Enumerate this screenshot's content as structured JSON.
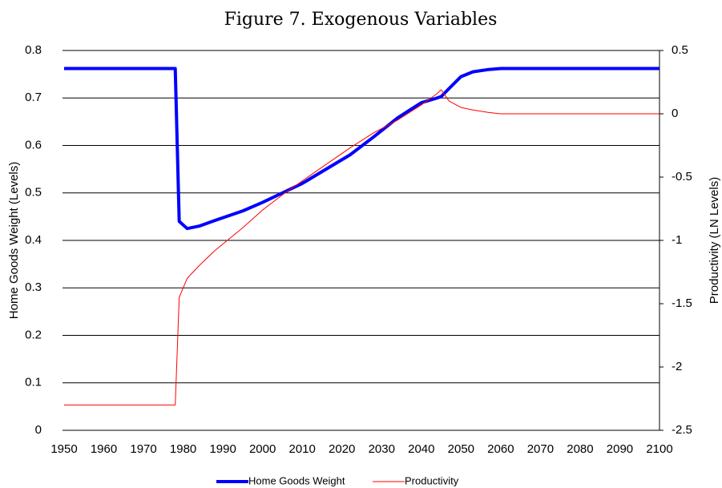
{
  "chart_data": {
    "type": "line",
    "title": "Figure 7. Exogenous Variables",
    "y_label": "Home Goods Weight (Levels)",
    "y2_label": "Productivity (LN Levels)",
    "x": [
      1950,
      1978,
      1979,
      1981,
      1984,
      1988,
      1995,
      2000,
      2005,
      2010,
      2016,
      2022,
      2028,
      2034,
      2040,
      2044,
      2045,
      2047,
      2050,
      2053,
      2057,
      2060,
      2100
    ],
    "series": [
      {
        "name": "Home Goods Weight",
        "color": "#0000ff",
        "width": 4,
        "values": [
          0.762,
          0.762,
          0.44,
          0.425,
          0.43,
          0.442,
          0.462,
          0.48,
          0.5,
          0.52,
          0.55,
          0.58,
          0.618,
          0.658,
          0.69,
          0.7,
          0.703,
          0.72,
          0.745,
          0.755,
          0.76,
          0.762,
          0.762
        ]
      },
      {
        "name": "Productivity",
        "color": "#ff0000",
        "width": 1,
        "axis": "y2",
        "values": [
          -2.3,
          -2.3,
          -1.45,
          -1.3,
          -1.2,
          -1.08,
          -0.9,
          -0.76,
          -0.64,
          -0.53,
          -0.4,
          -0.27,
          -0.15,
          -0.05,
          0.07,
          0.16,
          0.19,
          0.1,
          0.05,
          0.03,
          0.01,
          0,
          0
        ]
      }
    ],
    "xlim": [
      1950,
      2100
    ],
    "xticks": [
      1950,
      1960,
      1970,
      1980,
      1990,
      2000,
      2010,
      2020,
      2030,
      2040,
      2050,
      2060,
      2070,
      2080,
      2090,
      2100
    ],
    "ylim": [
      0,
      0.8
    ],
    "yticks": [
      0,
      0.1,
      0.2,
      0.3,
      0.4,
      0.5,
      0.6,
      0.7,
      0.8
    ],
    "y2lim": [
      -2.5,
      0.5
    ],
    "y2ticks": [
      -2.5,
      -2,
      -1.5,
      -1,
      -0.5,
      0,
      0.5
    ],
    "grid": true,
    "legend": "bottom"
  }
}
